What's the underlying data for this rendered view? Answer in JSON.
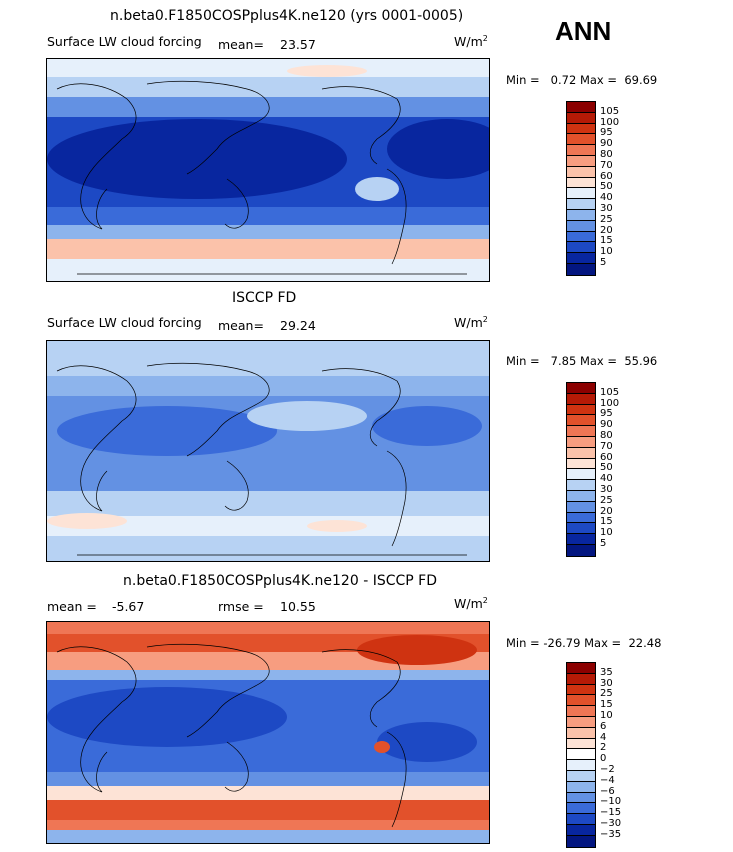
{
  "season": "ANN",
  "panels": [
    {
      "title": "n.beta0.F1850COSPplus4K.ne120 (yrs 0001-0005)",
      "variable": "Surface LW cloud forcing",
      "mean_label": "mean=",
      "mean_value": "23.57",
      "units": "W/m",
      "units_exp": "2",
      "min_label": "Min =",
      "min_value": "0.72",
      "max_label": "Max =",
      "max_value": "69.69",
      "colorbar": {
        "labels": [
          "105",
          "100",
          "95",
          "90",
          "80",
          "70",
          "60",
          "50",
          "40",
          "30",
          "25",
          "20",
          "15",
          "10",
          "5"
        ],
        "colors": [
          "#8b0000",
          "#b51a06",
          "#cf3311",
          "#e2512b",
          "#ef7655",
          "#f79d80",
          "#fbc2aa",
          "#fde3d6",
          "#e6f0fb",
          "#b7d2f3",
          "#8db4ec",
          "#6391e3",
          "#3a6bd9",
          "#1d49c4",
          "#08269f",
          "#031680"
        ]
      }
    },
    {
      "title": "ISCCP FD",
      "variable": "Surface LW cloud forcing",
      "mean_label": "mean=",
      "mean_value": "29.24",
      "units": "W/m",
      "units_exp": "2",
      "min_label": "Min =",
      "min_value": "7.85",
      "max_label": "Max =",
      "max_value": "55.96",
      "colorbar": {
        "labels": [
          "105",
          "100",
          "95",
          "90",
          "80",
          "70",
          "60",
          "50",
          "40",
          "30",
          "25",
          "20",
          "15",
          "10",
          "5"
        ],
        "colors": [
          "#8b0000",
          "#b51a06",
          "#cf3311",
          "#e2512b",
          "#ef7655",
          "#f79d80",
          "#fbc2aa",
          "#fde3d6",
          "#e6f0fb",
          "#b7d2f3",
          "#8db4ec",
          "#6391e3",
          "#3a6bd9",
          "#1d49c4",
          "#08269f",
          "#031680"
        ]
      }
    },
    {
      "title": "n.beta0.F1850COSPplus4K.ne120 - ISCCP FD",
      "mean_label": "mean =",
      "mean_value": "-5.67",
      "rmse_label": "rmse =",
      "rmse_value": "10.55",
      "units": "W/m",
      "units_exp": "2",
      "min_label": "Min =",
      "min_value": "-26.79",
      "max_label": "Max =",
      "max_value": "22.48",
      "colorbar": {
        "labels": [
          "35",
          "30",
          "25",
          "15",
          "10",
          "6",
          "4",
          "2",
          "0",
          "−2",
          "−4",
          "−6",
          "−10",
          "−15",
          "−30",
          "−35"
        ],
        "colors": [
          "#8b0000",
          "#b51a06",
          "#cf3311",
          "#e2512b",
          "#ef7655",
          "#f79d80",
          "#fbc2aa",
          "#fde3d6",
          "#ffffff",
          "#e6f0fb",
          "#b7d2f3",
          "#8db4ec",
          "#6391e3",
          "#3a6bd9",
          "#1d49c4",
          "#08269f",
          "#031680"
        ]
      }
    }
  ]
}
